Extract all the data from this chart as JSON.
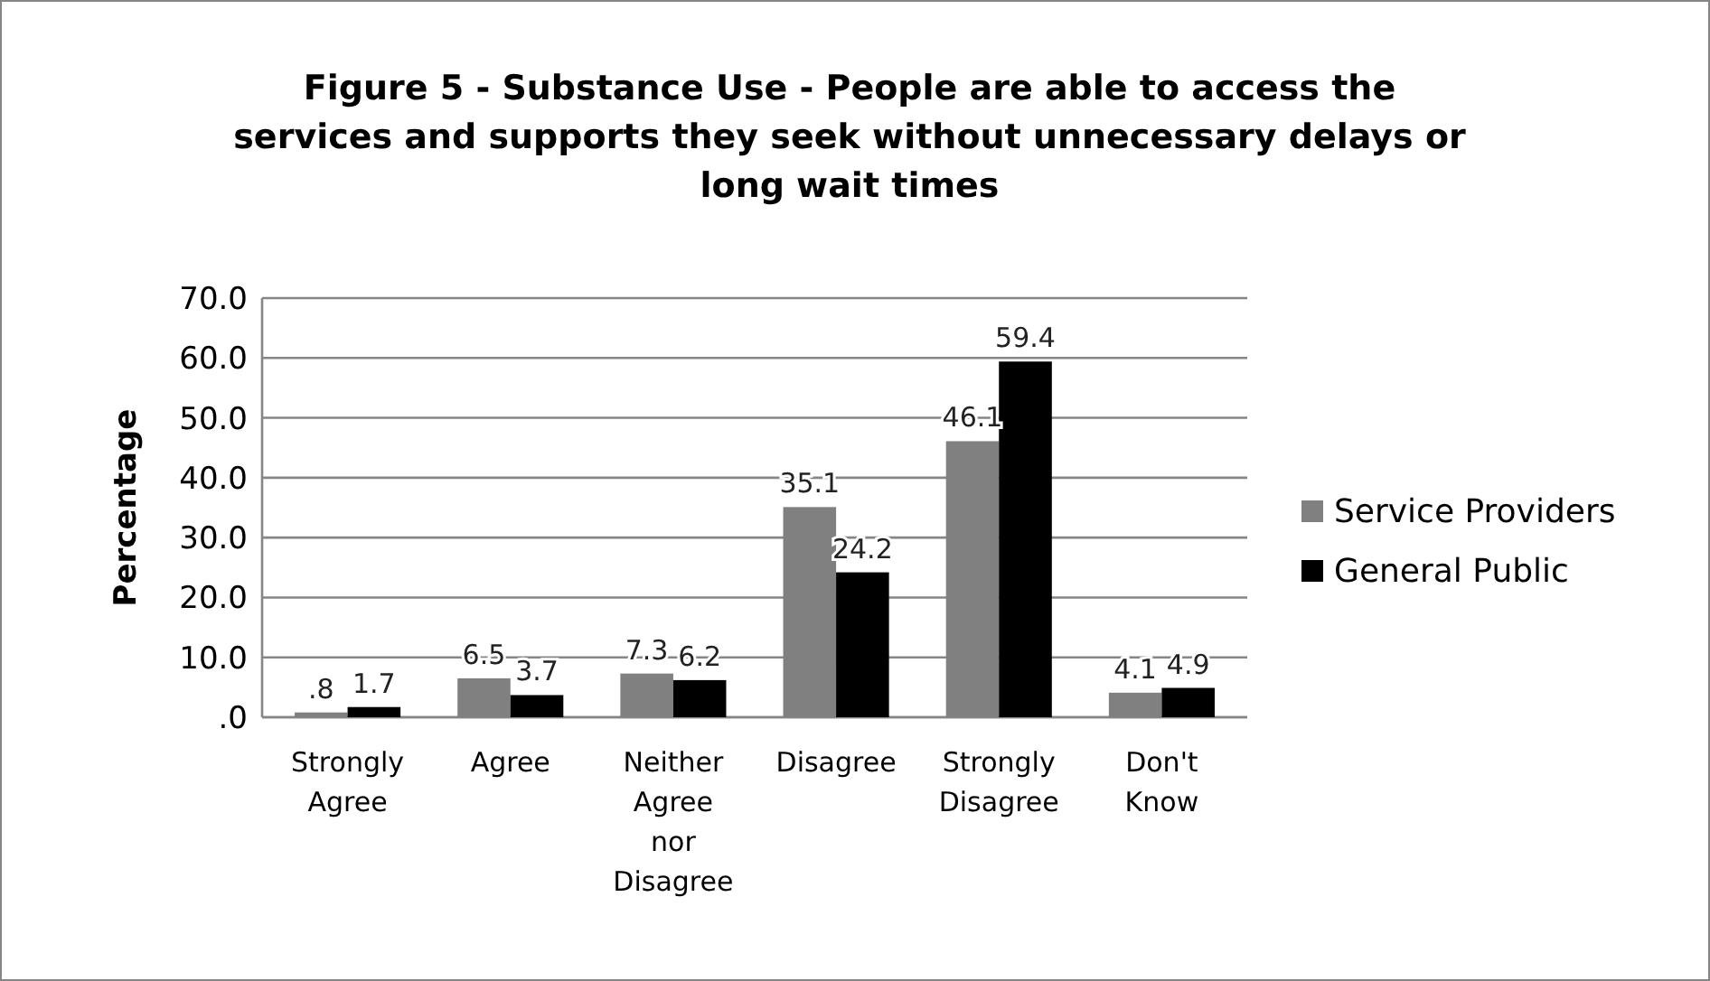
{
  "chart_data": {
    "type": "bar",
    "title": "Figure 5 - Substance Use - People are able to access the services and supports they seek without unnecessary delays or long wait times",
    "ylabel": "Percentage",
    "categories": [
      "Strongly Agree",
      "Agree",
      "Neither Agree nor Disagree",
      "Disagree",
      "Strongly Disagree",
      "Don't Know"
    ],
    "series": [
      {
        "name": "Service Providers",
        "color": "#808080",
        "values": [
          0.8,
          6.5,
          7.3,
          35.1,
          46.1,
          4.1
        ],
        "value_labels": [
          ".8",
          "6.5",
          "7.3",
          "35.1",
          "46.1",
          "4.1"
        ]
      },
      {
        "name": "General Public",
        "color": "#000000",
        "values": [
          1.7,
          3.7,
          6.2,
          24.2,
          59.4,
          4.9
        ],
        "value_labels": [
          "1.7",
          "3.7",
          "6.2",
          "24.2",
          "59.4",
          "4.9"
        ]
      }
    ],
    "ylim": [
      0,
      70
    ],
    "yticks": [
      {
        "value": 0,
        "label": ".0"
      },
      {
        "value": 10,
        "label": "10.0"
      },
      {
        "value": 20,
        "label": "20.0"
      },
      {
        "value": 30,
        "label": "30.0"
      },
      {
        "value": 40,
        "label": "40.0"
      },
      {
        "value": 50,
        "label": "50.0"
      },
      {
        "value": 60,
        "label": "60.0"
      },
      {
        "value": 70,
        "label": "70.0"
      }
    ],
    "grid": "y",
    "legend": "right"
  }
}
